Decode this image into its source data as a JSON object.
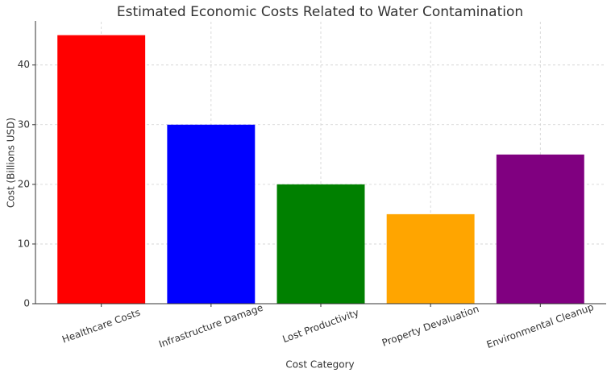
{
  "chart_data": {
    "type": "bar",
    "title": "Estimated Economic Costs Related to Water Contamination",
    "x_label": "Cost Category",
    "y_label": "Cost (Billions USD)",
    "categories": [
      "Healthcare Costs",
      "Infrastructure Damage",
      "Lost Productivity",
      "Property Devaluation",
      "Environmental Cleanup"
    ],
    "values": [
      45,
      30,
      20,
      15,
      25
    ],
    "colors": [
      "#ff0000",
      "#0000ff",
      "#008000",
      "#ffa500",
      "#800080"
    ],
    "ylim": [
      0,
      47.25
    ],
    "yticks": [
      0,
      10,
      20,
      30,
      40
    ],
    "grid": true
  }
}
